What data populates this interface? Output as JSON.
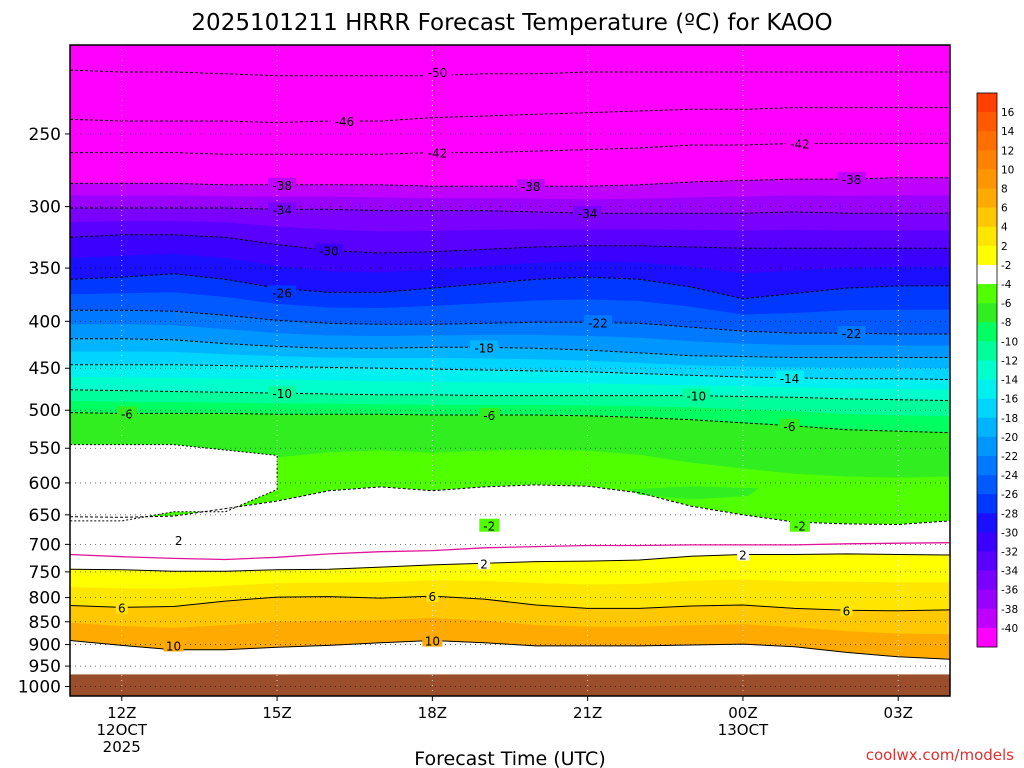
{
  "chart_data": {
    "type": "heatmap",
    "title": "2025101211 HRRR Forecast Temperature (ºC) for KAOO",
    "xlabel": "Forecast Time (UTC)",
    "ylabel": "",
    "credit": "coolwx.com/models",
    "y_scale": "log",
    "ylim": [
      1024,
      200
    ],
    "xlim": [
      11,
      28
    ],
    "x_ticks": [
      {
        "x": 12,
        "labels": [
          "12Z",
          "12OCT",
          "2025"
        ]
      },
      {
        "x": 15,
        "labels": [
          "15Z"
        ]
      },
      {
        "x": 18,
        "labels": [
          "18Z"
        ]
      },
      {
        "x": 21,
        "labels": [
          "21Z"
        ]
      },
      {
        "x": 24,
        "labels": [
          "00Z",
          "13OCT"
        ]
      },
      {
        "x": 27,
        "labels": [
          "03Z"
        ]
      }
    ],
    "y_ticks": [
      250,
      300,
      350,
      400,
      450,
      500,
      550,
      600,
      650,
      700,
      750,
      800,
      850,
      900,
      950,
      1000
    ],
    "y_tick_labels": [
      "250",
      "300",
      "350",
      "400",
      "450",
      "500",
      "550",
      "600",
      "650",
      "700",
      "750",
      "800",
      "850",
      "900",
      "950",
      "1000"
    ],
    "grid": "dotted gridlines at every tick",
    "colorbar": {
      "placement": "right",
      "labels": [
        "16",
        "14",
        "12",
        "10",
        "8",
        "6",
        "4",
        "2",
        "-2",
        "-4",
        "-6",
        "-8",
        "-10",
        "-12",
        "-14",
        "-16",
        "-18",
        "-20",
        "-22",
        "-24",
        "-26",
        "-28",
        "-30",
        "-32",
        "-34",
        "-36",
        "-38",
        "-40"
      ],
      "colors": [
        "#ff4000",
        "#ff5a00",
        "#ff6e00",
        "#ff8200",
        "#ff9600",
        "#ffaa00",
        "#ffc800",
        "#ffe600",
        "#ffff00",
        "#ffffff",
        "#50ff00",
        "#30ee20",
        "#00ff60",
        "#00ff9a",
        "#00ffcc",
        "#00f0f0",
        "#00d4ff",
        "#00b4ff",
        "#0096ff",
        "#0078ff",
        "#005aff",
        "#0038ff",
        "#1a10ff",
        "#3c00ff",
        "#5a00ff",
        "#7a00ff",
        "#9a00ff",
        "#c000ff",
        "#ff00ff"
      ]
    },
    "underground_color": "#9a4e2b",
    "surface_pressure": 970,
    "valid_times": [
      11,
      12,
      13,
      14,
      15,
      16,
      17,
      18,
      19,
      20,
      21,
      22,
      23,
      24,
      25,
      26,
      27,
      28
    ],
    "isotherms": [
      {
        "label": "-50",
        "values": [
          213,
          214,
          214,
          215,
          216,
          216,
          216,
          216,
          215,
          215,
          214,
          214,
          214,
          214,
          214,
          214,
          214,
          214
        ]
      },
      {
        "label": "-46",
        "values": [
          241,
          242,
          242,
          242,
          243,
          242,
          242,
          240,
          239,
          238,
          237,
          236,
          235,
          235,
          234,
          234,
          234,
          234
        ]
      },
      {
        "label": "-42",
        "values": [
          262,
          262,
          262,
          263,
          263,
          263,
          263,
          262,
          262,
          261,
          260,
          259,
          257,
          257,
          256,
          256,
          256,
          256
        ]
      },
      {
        "label": "-38",
        "values": [
          283,
          283,
          283,
          284,
          284,
          284,
          284,
          285,
          285,
          285,
          285,
          284,
          282,
          281,
          280,
          280,
          279,
          279
        ]
      },
      {
        "label": "-34",
        "values": [
          301,
          301,
          301,
          301,
          302,
          302,
          303,
          303,
          303,
          304,
          305,
          305,
          305,
          305,
          304,
          305,
          305,
          305
        ]
      },
      {
        "label": "-30",
        "values": [
          324,
          322,
          322,
          324,
          330,
          335,
          337,
          336,
          334,
          332,
          331,
          331,
          332,
          333,
          333,
          333,
          333,
          333
        ]
      },
      {
        "label": "-26",
        "values": [
          360,
          358,
          355,
          360,
          368,
          372,
          372,
          368,
          364,
          360,
          358,
          360,
          367,
          378,
          373,
          368,
          366,
          366
        ]
      },
      {
        "label": "-22",
        "values": [
          389,
          389,
          390,
          394,
          399,
          402,
          403,
          403,
          402,
          401,
          401,
          402,
          406,
          410,
          412,
          412,
          413,
          413
        ]
      },
      {
        "label": "-18",
        "values": [
          418,
          418,
          419,
          423,
          426,
          428,
          428,
          427,
          427,
          428,
          430,
          433,
          436,
          437,
          438,
          438,
          438,
          438
        ]
      },
      {
        "label": "-14",
        "values": [
          446,
          446,
          446,
          447,
          448,
          449,
          450,
          451,
          452,
          453,
          454,
          456,
          458,
          460,
          461,
          462,
          462,
          463
        ]
      },
      {
        "label": "-10",
        "values": [
          475,
          476,
          477,
          478,
          479,
          480,
          481,
          481,
          482,
          482,
          482,
          482,
          482,
          483,
          484,
          486,
          487,
          488
        ]
      },
      {
        "label": "-6",
        "values": [
          503,
          504,
          504,
          504,
          505,
          505,
          505,
          506,
          506,
          506,
          507,
          509,
          512,
          516,
          520,
          525,
          527,
          529
        ]
      },
      {
        "label": "-2",
        "values": [
          653,
          654,
          652,
          640,
          628,
          612,
          606,
          612,
          606,
          603,
          605,
          615,
          636,
          650,
          662,
          665,
          666,
          660
        ]
      },
      {
        "label": "0",
        "values": [
          718,
          722,
          725,
          727,
          723,
          717,
          713,
          711,
          706,
          704,
          702,
          702,
          701,
          701,
          701,
          699,
          698,
          697
        ]
      },
      {
        "label": "2",
        "values": [
          745,
          746,
          749,
          749,
          746,
          745,
          741,
          737,
          734,
          731,
          730,
          728,
          721,
          718,
          718,
          717,
          718,
          719
        ]
      },
      {
        "label": "6",
        "values": [
          816,
          820,
          818,
          807,
          799,
          798,
          801,
          797,
          803,
          815,
          822,
          822,
          817,
          815,
          822,
          826,
          827,
          825
        ]
      },
      {
        "label": "10",
        "values": [
          891,
          902,
          912,
          912,
          906,
          902,
          896,
          891,
          896,
          903,
          903,
          903,
          901,
          899,
          905,
          918,
          928,
          934
        ]
      }
    ],
    "isotherm_labels": [
      {
        "label": "-50",
        "x": 18.1,
        "y": 214
      },
      {
        "label": "-46",
        "x": 16.3,
        "y": 242
      },
      {
        "label": "-42",
        "x": 18.1,
        "y": 262
      },
      {
        "label": "-42",
        "x": 25.1,
        "y": 256
      },
      {
        "label": "-38",
        "x": 15.1,
        "y": 284
      },
      {
        "label": "-38",
        "x": 19.9,
        "y": 285
      },
      {
        "label": "-38",
        "x": 26.1,
        "y": 280
      },
      {
        "label": "-34",
        "x": 15.1,
        "y": 302
      },
      {
        "label": "-34",
        "x": 21.0,
        "y": 305
      },
      {
        "label": "-30",
        "x": 16.0,
        "y": 335
      },
      {
        "label": "-26",
        "x": 15.1,
        "y": 372
      },
      {
        "label": "-22",
        "x": 21.2,
        "y": 401
      },
      {
        "label": "-22",
        "x": 26.1,
        "y": 412
      },
      {
        "label": "-18",
        "x": 19.0,
        "y": 427
      },
      {
        "label": "-14",
        "x": 24.9,
        "y": 461
      },
      {
        "label": "-10",
        "x": 15.1,
        "y": 479
      },
      {
        "label": "-10",
        "x": 23.1,
        "y": 482
      },
      {
        "label": "-6",
        "x": 12.1,
        "y": 504
      },
      {
        "label": "-6",
        "x": 19.1,
        "y": 506
      },
      {
        "label": "-6",
        "x": 24.9,
        "y": 520
      },
      {
        "label": "-2",
        "x": 19.1,
        "y": 668
      },
      {
        "label": "-2",
        "x": 25.1,
        "y": 668
      },
      {
        "label": "2",
        "x": 13.1,
        "y": 692
      },
      {
        "label": "2",
        "x": 19.0,
        "y": 734
      },
      {
        "label": "2",
        "x": 24.0,
        "y": 718
      },
      {
        "label": "6",
        "x": 12.0,
        "y": 820
      },
      {
        "label": "6",
        "x": 18.0,
        "y": 797
      },
      {
        "label": "6",
        "x": 26.0,
        "y": 826
      },
      {
        "label": "10",
        "x": 13.0,
        "y": 902
      },
      {
        "label": "10",
        "x": 18.0,
        "y": 891
      }
    ],
    "regions": [
      {
        "temp": "0..2",
        "type": "above_surface_below",
        "boundary_values": [
          653,
          654,
          652,
          640,
          628,
          612,
          606,
          612,
          606,
          603,
          605,
          615,
          636,
          650,
          662,
          665,
          666,
          660
        ]
      },
      {
        "temp": "0..2 pocket",
        "points": [
          [
            11,
            545
          ],
          [
            13,
            545
          ],
          [
            15,
            560
          ],
          [
            15,
            610
          ],
          [
            14,
            645
          ],
          [
            13,
            645
          ],
          [
            12,
            660
          ],
          [
            11,
            660
          ]
        ]
      },
      {
        "temp": "-4..-2 pocket",
        "points": [
          [
            21.8,
            610
          ],
          [
            23,
            605
          ],
          [
            24.3,
            608
          ],
          [
            24.1,
            620
          ],
          [
            23,
            625
          ],
          [
            22,
            618
          ]
        ]
      }
    ]
  }
}
